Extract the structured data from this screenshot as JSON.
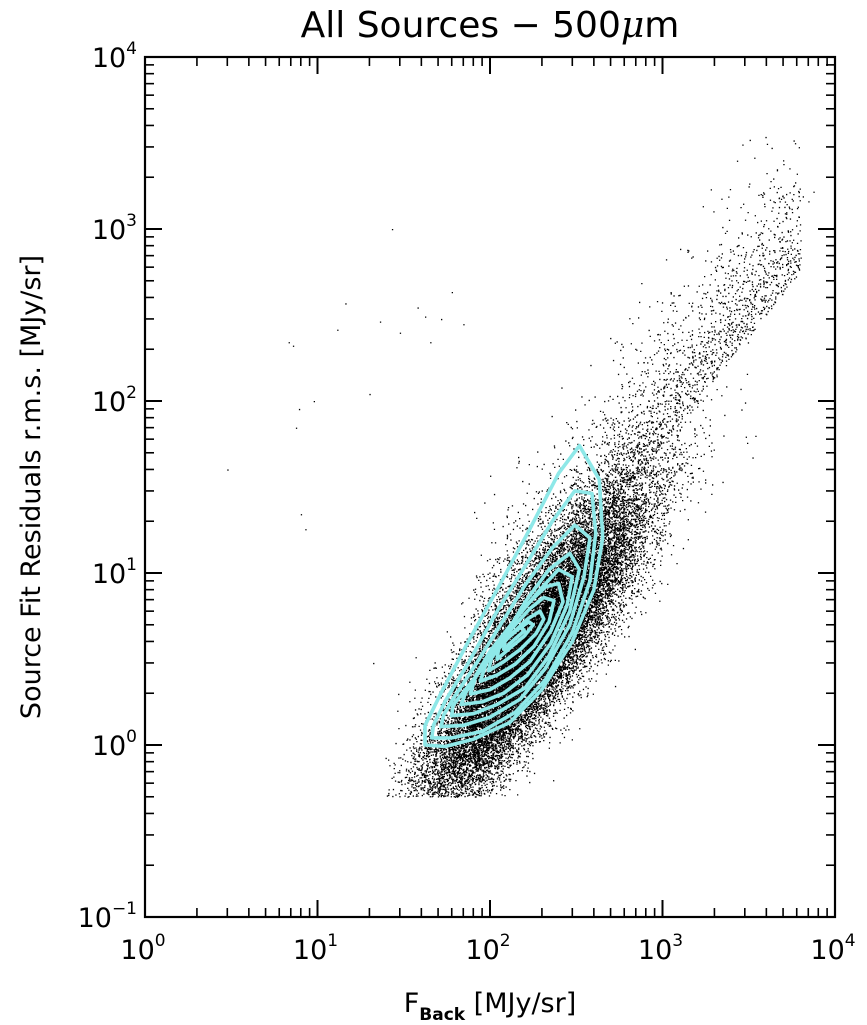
{
  "chart_data": {
    "type": "scatter",
    "title_main": "All Sources − 500",
    "title_unit_mu": "μ",
    "title_unit_m": "m",
    "xlabel_main": "F",
    "xlabel_sub": "Back",
    "xlabel_units": " [MJy/sr]",
    "ylabel": "Source Fit Residuals r.m.s. [MJy/sr]",
    "xscale": "log",
    "yscale": "log",
    "xlim": [
      1,
      10000
    ],
    "ylim": [
      0.1,
      10000
    ],
    "x_ticks": [
      {
        "value": 1,
        "base": "10",
        "exp": "0"
      },
      {
        "value": 10,
        "base": "10",
        "exp": "1"
      },
      {
        "value": 100,
        "base": "10",
        "exp": "2"
      },
      {
        "value": 1000,
        "base": "10",
        "exp": "3"
      },
      {
        "value": 10000,
        "base": "10",
        "exp": "4"
      }
    ],
    "y_ticks": [
      {
        "value": 0.1,
        "base": "10",
        "exp": "−1"
      },
      {
        "value": 1,
        "base": "10",
        "exp": "0"
      },
      {
        "value": 10,
        "base": "10",
        "exp": "1"
      },
      {
        "value": 100,
        "base": "10",
        "exp": "2"
      },
      {
        "value": 1000,
        "base": "10",
        "exp": "3"
      },
      {
        "value": 10000,
        "base": "10",
        "exp": "4"
      }
    ],
    "grid": false,
    "legend": "none",
    "series": [
      {
        "kind": "points",
        "color": "#000000",
        "distribution": {
          "description_free": true,
          "core_points": 24000,
          "halo_points": 2600,
          "relation_log_slope": 1.25,
          "relation_log_intercept": -2.25,
          "x_center_log": 2.25,
          "x_spread_log": 0.33,
          "y_scatter_log": 0.23,
          "x_range_log": [
            1.35,
            3.9
          ],
          "y_range_log": [
            -0.3,
            3.55
          ]
        },
        "outliers": [
          [
            3.0,
            40
          ],
          [
            6.8,
            220
          ],
          [
            7.2,
            210
          ],
          [
            7.5,
            70
          ],
          [
            7.8,
            90
          ],
          [
            8.0,
            22
          ],
          [
            8.5,
            18
          ],
          [
            9.5,
            100
          ],
          [
            13.0,
            260
          ],
          [
            14.5,
            370
          ],
          [
            20.0,
            110
          ],
          [
            21.0,
            3.0
          ],
          [
            23.0,
            290
          ],
          [
            27.0,
            1000
          ],
          [
            34.0,
            1.8
          ],
          [
            38.0,
            350
          ],
          [
            30.0,
            250
          ],
          [
            42.0,
            310
          ],
          [
            45.0,
            220
          ],
          [
            52.0,
            300
          ],
          [
            60.0,
            430
          ],
          [
            70.0,
            280
          ],
          [
            2700,
            2500
          ],
          [
            2900,
            3100
          ],
          [
            3200,
            3300
          ],
          [
            3400,
            2600
          ],
          [
            4600,
            2200
          ],
          [
            5200,
            1600
          ],
          [
            5600,
            1500
          ],
          [
            6000,
            2100
          ],
          [
            6500,
            1550
          ],
          [
            7000,
            1450
          ],
          [
            7500,
            1650
          ]
        ]
      },
      {
        "kind": "contours",
        "color": "#8ee8e8",
        "levels": [
          [
            [
              42,
              1.0
            ],
            [
              55,
              0.98
            ],
            [
              80,
              1.08
            ],
            [
              130,
              1.35
            ],
            [
              200,
              2.1
            ],
            [
              300,
              4.0
            ],
            [
              400,
              8.0
            ],
            [
              450,
              16
            ],
            [
              430,
              35
            ],
            [
              330,
              55
            ],
            [
              250,
              38
            ],
            [
              170,
              18
            ],
            [
              110,
              8.0
            ],
            [
              75,
              4.0
            ],
            [
              52,
              2.0
            ],
            [
              42,
              1.3
            ]
          ],
          [
            [
              46,
              1.1
            ],
            [
              60,
              1.1
            ],
            [
              90,
              1.2
            ],
            [
              140,
              1.55
            ],
            [
              210,
              2.4
            ],
            [
              300,
              4.5
            ],
            [
              380,
              9.0
            ],
            [
              410,
              17
            ],
            [
              390,
              29
            ],
            [
              310,
              30
            ],
            [
              230,
              20
            ],
            [
              160,
              11
            ],
            [
              110,
              6.0
            ],
            [
              75,
              3.0
            ],
            [
              55,
              1.8
            ],
            [
              47,
              1.3
            ]
          ],
          [
            [
              52,
              1.28
            ],
            [
              70,
              1.3
            ],
            [
              100,
              1.45
            ],
            [
              150,
              1.85
            ],
            [
              210,
              2.8
            ],
            [
              290,
              5.0
            ],
            [
              350,
              9.5
            ],
            [
              380,
              16
            ],
            [
              310,
              19
            ],
            [
              230,
              14
            ],
            [
              160,
              8.5
            ],
            [
              115,
              5.0
            ],
            [
              82,
              2.9
            ],
            [
              62,
              1.9
            ],
            [
              54,
              1.5
            ]
          ],
          [
            [
              60,
              1.48
            ],
            [
              80,
              1.52
            ],
            [
              110,
              1.72
            ],
            [
              160,
              2.15
            ],
            [
              220,
              3.3
            ],
            [
              290,
              6.0
            ],
            [
              330,
              10.5
            ],
            [
              290,
              13
            ],
            [
              220,
              10.5
            ],
            [
              160,
              6.8
            ],
            [
              120,
              4.2
            ],
            [
              88,
              2.7
            ],
            [
              68,
              1.95
            ],
            [
              61,
              1.7
            ]
          ],
          [
            [
              68,
              1.72
            ],
            [
              90,
              1.78
            ],
            [
              120,
              2.0
            ],
            [
              165,
              2.55
            ],
            [
              225,
              3.9
            ],
            [
              280,
              6.5
            ],
            [
              300,
              9.5
            ],
            [
              250,
              10.5
            ],
            [
              195,
              8.0
            ],
            [
              145,
              5.6
            ],
            [
              110,
              3.8
            ],
            [
              85,
              2.6
            ],
            [
              72,
              2.0
            ]
          ],
          [
            [
              77,
              1.98
            ],
            [
              100,
              2.1
            ],
            [
              130,
              2.45
            ],
            [
              170,
              3.05
            ],
            [
              225,
              4.6
            ],
            [
              265,
              6.8
            ],
            [
              250,
              8.7
            ],
            [
              210,
              8.3
            ],
            [
              165,
              6.6
            ],
            [
              128,
              4.8
            ],
            [
              100,
              3.5
            ],
            [
              83,
              2.55
            ]
          ],
          [
            [
              88,
              2.35
            ],
            [
              110,
              2.55
            ],
            [
              140,
              2.95
            ],
            [
              180,
              3.75
            ],
            [
              220,
              5.2
            ],
            [
              235,
              6.9
            ],
            [
              205,
              7.2
            ],
            [
              170,
              6.2
            ],
            [
              140,
              5.0
            ],
            [
              112,
              3.9
            ],
            [
              95,
              3.0
            ]
          ],
          [
            [
              98,
              2.7
            ],
            [
              120,
              3.05
            ],
            [
              150,
              3.6
            ],
            [
              185,
              4.45
            ],
            [
              205,
              5.4
            ],
            [
              195,
              6.0
            ],
            [
              165,
              5.4
            ],
            [
              138,
              4.55
            ],
            [
              115,
              3.8
            ],
            [
              102,
              3.2
            ]
          ],
          [
            [
              110,
              3.15
            ],
            [
              132,
              3.7
            ],
            [
              158,
              4.3
            ],
            [
              178,
              5.0
            ],
            [
              168,
              5.2
            ],
            [
              145,
              4.7
            ],
            [
              124,
              4.1
            ],
            [
              112,
              3.6
            ]
          ],
          [
            [
              120,
              3.6
            ],
            [
              140,
              4.15
            ],
            [
              158,
              4.6
            ],
            [
              152,
              4.85
            ],
            [
              135,
              4.5
            ],
            [
              122,
              4.0
            ]
          ]
        ]
      }
    ]
  }
}
